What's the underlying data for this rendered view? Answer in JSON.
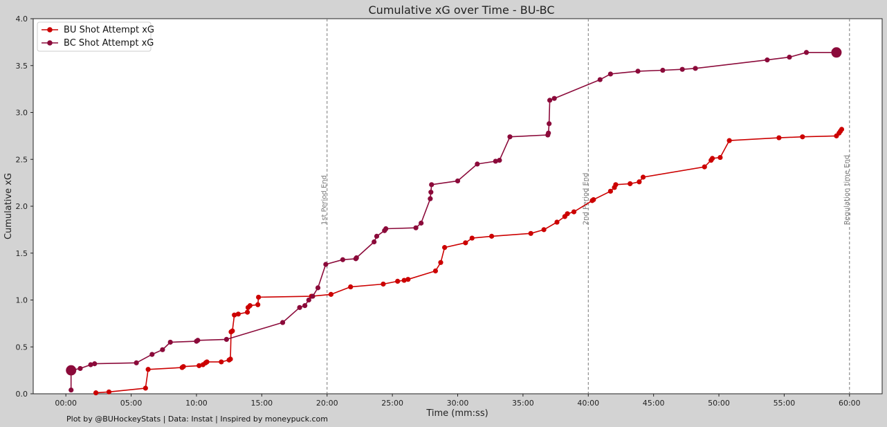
{
  "chart_data": {
    "type": "line",
    "title": "Cumulative xG over Time - BU-BC",
    "xlabel": "Time (mm:ss)",
    "ylabel": "Cumulative xG",
    "xlim": [
      -2.5,
      62.5
    ],
    "ylim": [
      0,
      4.0
    ],
    "x_ticks": [
      0,
      5,
      10,
      15,
      20,
      25,
      30,
      35,
      40,
      45,
      50,
      55,
      60
    ],
    "x_tick_labels": [
      "00:00",
      "05:00",
      "10:00",
      "15:00",
      "20:00",
      "25:00",
      "30:00",
      "35:00",
      "40:00",
      "45:00",
      "50:00",
      "55:00",
      "60:00"
    ],
    "y_ticks": [
      0,
      0.5,
      1.0,
      1.5,
      2.0,
      2.5,
      3.0,
      3.5,
      4.0
    ],
    "y_tick_labels": [
      "0.0",
      "0.5",
      "1.0",
      "1.5",
      "2.0",
      "2.5",
      "3.0",
      "3.5",
      "4.0"
    ],
    "grid": false,
    "legend_position": "top-left",
    "vertical_lines": [
      {
        "x": 20,
        "label": "1st Period End"
      },
      {
        "x": 40,
        "label": "2nd Period End"
      },
      {
        "x": 60,
        "label": "Regulation time End"
      }
    ],
    "footer": "Plot by @BUHockeyStats | Data: Instat | Inspired by moneypuck.com",
    "series": [
      {
        "name": "BU Shot Attempt xG",
        "color": "#cc0000",
        "points": [
          [
            2.3,
            0.01
          ],
          [
            3.3,
            0.02
          ],
          [
            6.1,
            0.06
          ],
          [
            6.3,
            0.26
          ],
          [
            8.9,
            0.28
          ],
          [
            9.0,
            0.29
          ],
          [
            10.2,
            0.3
          ],
          [
            10.5,
            0.31
          ],
          [
            10.7,
            0.33
          ],
          [
            10.8,
            0.34
          ],
          [
            11.9,
            0.34
          ],
          [
            12.5,
            0.36
          ],
          [
            12.6,
            0.37
          ],
          [
            12.65,
            0.66
          ],
          [
            12.75,
            0.67
          ],
          [
            12.9,
            0.84
          ],
          [
            13.2,
            0.85
          ],
          [
            13.9,
            0.87
          ],
          [
            13.95,
            0.92
          ],
          [
            14.1,
            0.94
          ],
          [
            14.7,
            0.95
          ],
          [
            14.75,
            1.03
          ],
          [
            18.8,
            1.04
          ],
          [
            20.3,
            1.06
          ],
          [
            21.8,
            1.14
          ],
          [
            24.3,
            1.17
          ],
          [
            25.4,
            1.2
          ],
          [
            25.9,
            1.21
          ],
          [
            26.2,
            1.22
          ],
          [
            28.3,
            1.31
          ],
          [
            28.7,
            1.4
          ],
          [
            29.0,
            1.56
          ],
          [
            30.6,
            1.61
          ],
          [
            31.1,
            1.66
          ],
          [
            32.6,
            1.68
          ],
          [
            35.6,
            1.71
          ],
          [
            36.6,
            1.75
          ],
          [
            37.6,
            1.83
          ],
          [
            38.2,
            1.89
          ],
          [
            38.4,
            1.92
          ],
          [
            38.9,
            1.94
          ],
          [
            40.3,
            2.06
          ],
          [
            40.4,
            2.07
          ],
          [
            41.7,
            2.16
          ],
          [
            42.0,
            2.2
          ],
          [
            42.1,
            2.23
          ],
          [
            43.2,
            2.24
          ],
          [
            43.9,
            2.26
          ],
          [
            44.2,
            2.31
          ],
          [
            48.9,
            2.42
          ],
          [
            49.4,
            2.49
          ],
          [
            49.5,
            2.51
          ],
          [
            50.1,
            2.52
          ],
          [
            50.8,
            2.7
          ],
          [
            54.6,
            2.73
          ],
          [
            56.4,
            2.74
          ],
          [
            59.0,
            2.75
          ],
          [
            59.2,
            2.78
          ],
          [
            59.3,
            2.8
          ],
          [
            59.4,
            2.82
          ]
        ],
        "big_marker": null
      },
      {
        "name": "BC Shot Attempt xG",
        "color": "#8b0a3a",
        "points": [
          [
            0.4,
            0.04
          ],
          [
            0.4,
            0.25
          ],
          [
            1.1,
            0.27
          ],
          [
            1.9,
            0.31
          ],
          [
            2.2,
            0.32
          ],
          [
            5.4,
            0.33
          ],
          [
            6.6,
            0.42
          ],
          [
            7.4,
            0.47
          ],
          [
            8.0,
            0.55
          ],
          [
            10.0,
            0.56
          ],
          [
            10.1,
            0.57
          ],
          [
            12.3,
            0.58
          ],
          [
            16.6,
            0.76
          ],
          [
            17.9,
            0.92
          ],
          [
            18.3,
            0.94
          ],
          [
            18.6,
            1.0
          ],
          [
            18.9,
            1.04
          ],
          [
            19.3,
            1.13
          ],
          [
            19.9,
            1.38
          ],
          [
            21.2,
            1.43
          ],
          [
            22.2,
            1.44
          ],
          [
            22.25,
            1.45
          ],
          [
            23.6,
            1.62
          ],
          [
            23.8,
            1.68
          ],
          [
            24.4,
            1.74
          ],
          [
            24.5,
            1.76
          ],
          [
            26.8,
            1.77
          ],
          [
            27.2,
            1.82
          ],
          [
            27.9,
            2.08
          ],
          [
            27.95,
            2.15
          ],
          [
            28.0,
            2.23
          ],
          [
            30.0,
            2.27
          ],
          [
            31.5,
            2.45
          ],
          [
            32.9,
            2.48
          ],
          [
            33.2,
            2.49
          ],
          [
            34.0,
            2.74
          ],
          [
            36.9,
            2.76
          ],
          [
            36.95,
            2.78
          ],
          [
            37.0,
            2.88
          ],
          [
            37.05,
            3.13
          ],
          [
            37.4,
            3.15
          ],
          [
            40.9,
            3.35
          ],
          [
            41.7,
            3.41
          ],
          [
            43.8,
            3.44
          ],
          [
            45.7,
            3.45
          ],
          [
            47.2,
            3.46
          ],
          [
            48.2,
            3.47
          ],
          [
            53.7,
            3.56
          ],
          [
            55.4,
            3.59
          ],
          [
            56.7,
            3.64
          ],
          [
            59.0,
            3.64
          ]
        ],
        "big_marker": [
          [
            0.4,
            0.25
          ],
          [
            59.0,
            3.64
          ]
        ]
      }
    ]
  }
}
